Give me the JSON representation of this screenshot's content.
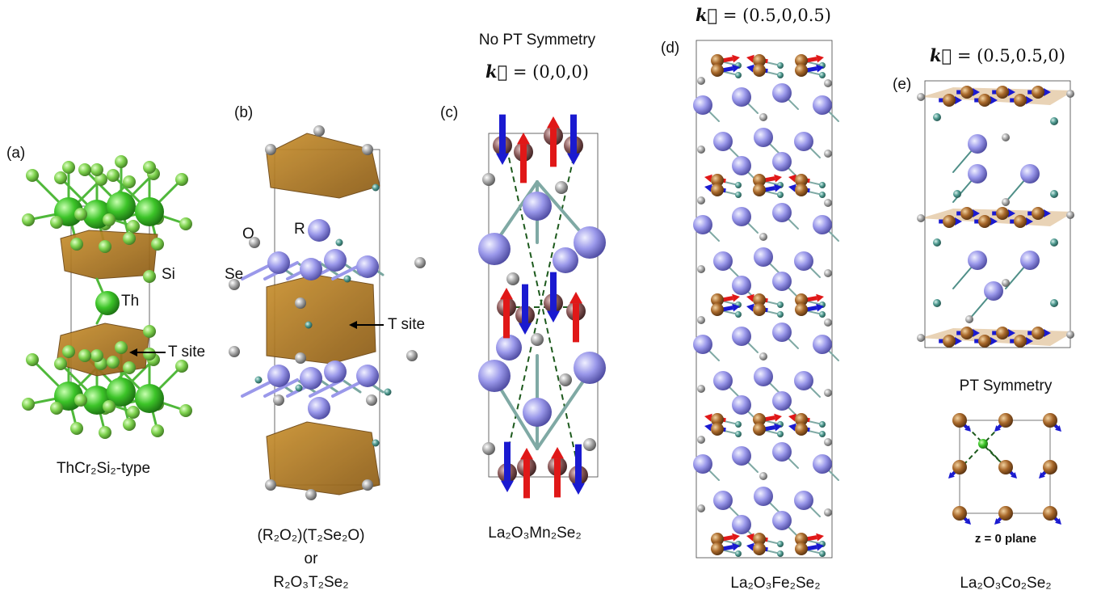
{
  "panels": [
    {
      "tag": "(a)",
      "atoms": [
        "Si",
        "Th"
      ],
      "site": "T site",
      "caption": [
        "ThCr₂Si₂-type"
      ]
    },
    {
      "tag": "(b)",
      "atoms": [
        "O",
        "R",
        "Se"
      ],
      "site": "T site",
      "caption": [
        "(R₂O₂)(T₂Se₂O)",
        "or",
        "R₂O₃T₂Se₂"
      ]
    },
    {
      "tag": "(c)",
      "title": "No PT Symmetry",
      "k": {
        "symbol": "k⃗",
        "value": "= (0,0,0)"
      },
      "caption": [
        "La₂O₃Mn₂Se₂"
      ]
    },
    {
      "tag": "(d)",
      "k": {
        "symbol": "k⃗",
        "value": "= (0.5,0,0.5)"
      },
      "caption": [
        "La₂O₃Fe₂Se₂"
      ]
    },
    {
      "tag": "(e)",
      "k": {
        "symbol": "k⃗",
        "value": "= (0.5,0.5,0)"
      },
      "title": "PT Symmetry",
      "inset": "z = 0 plane",
      "caption": [
        "La₂O₃Co₂Se₂"
      ]
    }
  ]
}
